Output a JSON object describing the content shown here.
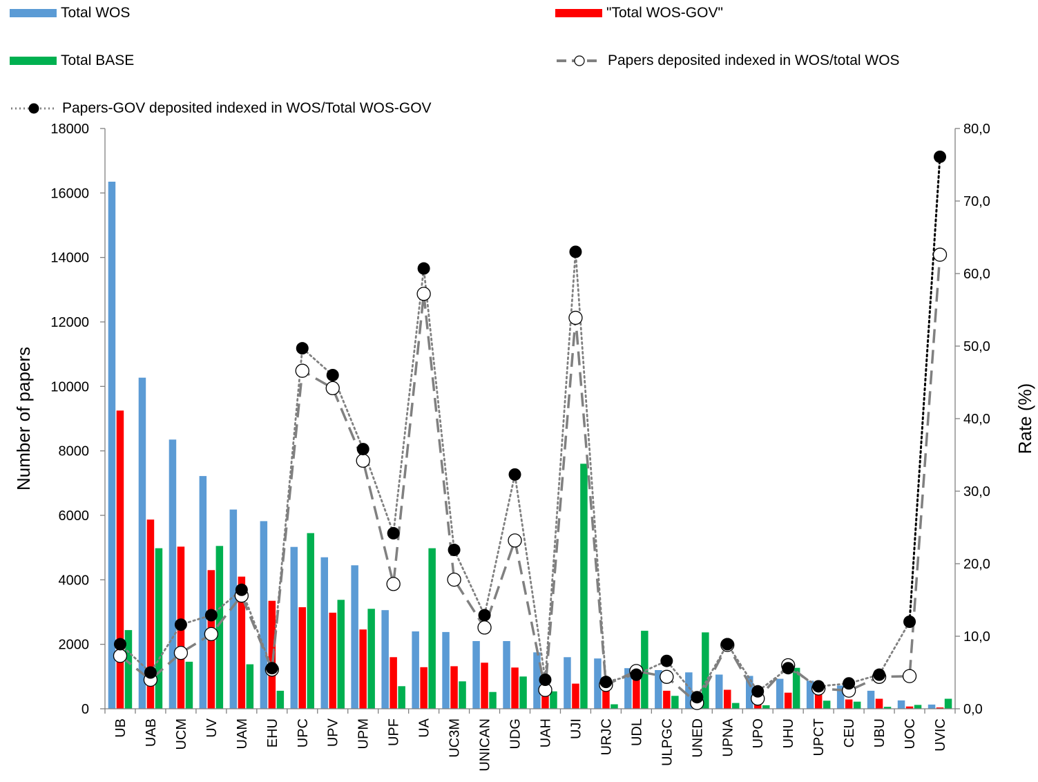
{
  "legend": {
    "total_wos": "Total WOS",
    "total_wos_gov": "\"Total WOS-GOV\"",
    "total_base": "Total BASE",
    "rate_all": "Papers deposited  indexed in WOS/total WOS",
    "rate_gov": "Papers-GOV deposited indexed in WOS/Total WOS-GOV"
  },
  "colors": {
    "total_wos": "#5b9bd5",
    "total_wos_gov": "#ff0000",
    "total_base": "#00b050",
    "rate_all": "#808080",
    "rate_gov": "#808080",
    "axis": "#7f7f7f"
  },
  "chart_data": {
    "type": "bar",
    "categories": [
      "UB",
      "UAB",
      "UCM",
      "UV",
      "UAM",
      "EHU",
      "UPC",
      "UPV",
      "UPM",
      "UPF",
      "UA",
      "UC3M",
      "UNICAN",
      "UDG",
      "UAH",
      "UJI",
      "URJC",
      "UDL",
      "ULPGC",
      "UNED",
      "UPNA",
      "UPO",
      "UHU",
      "UPCT",
      "CEU",
      "UBU",
      "UOC",
      "UVIC"
    ],
    "xlabel": "",
    "ylabel": "Number of papers",
    "ylim": [
      0,
      18000
    ],
    "yticks": [
      "0",
      "2000",
      "4000",
      "6000",
      "8000",
      "10000",
      "12000",
      "14000",
      "16000",
      "18000"
    ],
    "y2label": "Rate (%)",
    "y2lim": [
      0,
      80
    ],
    "y2ticks": [
      "0,0",
      "10,0",
      "20,0",
      "30,0",
      "40,0",
      "50,0",
      "60,0",
      "70,0",
      "80,0"
    ],
    "grid": false,
    "legend_position": "top",
    "series": [
      {
        "name": "Total WOS",
        "type": "bar",
        "axis": "left",
        "values": [
          16350,
          10270,
          8350,
          7220,
          6180,
          5820,
          5020,
          4700,
          4450,
          3060,
          2400,
          2380,
          2100,
          2100,
          1750,
          1600,
          1560,
          1260,
          1200,
          1130,
          1060,
          1020,
          930,
          870,
          720,
          560,
          260,
          130
        ]
      },
      {
        "name": "\"Total WOS-GOV\"",
        "type": "bar",
        "axis": "left",
        "values": [
          9250,
          5870,
          5030,
          4300,
          4100,
          3350,
          3150,
          2980,
          2460,
          1600,
          1290,
          1320,
          1430,
          1280,
          700,
          780,
          800,
          900,
          560,
          320,
          590,
          390,
          500,
          530,
          290,
          310,
          70,
          40
        ]
      },
      {
        "name": "Total BASE",
        "type": "bar",
        "axis": "left",
        "values": [
          2440,
          4980,
          1460,
          5050,
          1380,
          560,
          5450,
          3380,
          3100,
          700,
          4980,
          850,
          520,
          1000,
          540,
          7600,
          140,
          2420,
          400,
          2370,
          180,
          110,
          1270,
          250,
          220,
          60,
          120,
          310
        ]
      },
      {
        "name": "Papers deposited  indexed in WOS/total WOS",
        "type": "line",
        "axis": "right",
        "values": [
          7.3,
          4.0,
          7.7,
          10.3,
          15.6,
          5.4,
          46.6,
          44.2,
          34.2,
          17.2,
          57.2,
          17.8,
          11.2,
          23.2,
          2.6,
          53.9,
          3.3,
          5.2,
          4.4,
          0.8,
          8.8,
          1.4,
          6.0,
          2.8,
          2.5,
          4.4,
          4.5,
          62.6
        ]
      },
      {
        "name": "Papers-GOV deposited indexed in WOS/Total WOS-GOV",
        "type": "line",
        "axis": "right",
        "values": [
          8.9,
          5.0,
          11.6,
          12.9,
          16.4,
          5.6,
          49.7,
          46.0,
          35.8,
          24.2,
          60.7,
          21.9,
          12.9,
          32.3,
          4.0,
          63.0,
          3.7,
          4.7,
          6.6,
          1.6,
          8.9,
          2.4,
          5.6,
          3.1,
          3.5,
          4.7,
          12.0,
          76.1
        ]
      }
    ]
  }
}
